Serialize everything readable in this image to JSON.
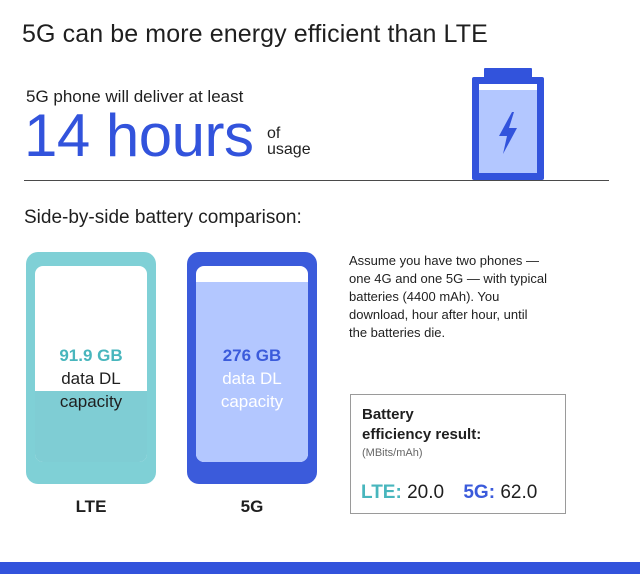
{
  "header": {
    "title": "5G can be more energy efficient than LTE",
    "subtitle": "5G phone will deliver at least",
    "hours": "14 hours",
    "of": "of",
    "usage": "usage"
  },
  "comparison": {
    "section_title": "Side-by-side battery comparison:",
    "lte": {
      "value": "91.9 GB",
      "line1": "data DL",
      "line2": "capacity",
      "label": "LTE",
      "fill_fraction": 0.36
    },
    "g5": {
      "value": "276 GB",
      "line1": "data DL",
      "line2": "capacity",
      "label": "5G",
      "fill_fraction": 0.92
    }
  },
  "assumption": {
    "text": "Assume you have two phones — one 4G and one 5G — with typical batteries (4400 mAh). You download, hour after hour, until the batteries die."
  },
  "result": {
    "title_line1": "Battery",
    "title_line2": "efficiency result:",
    "unit": "(MBits/mAh)",
    "lte_key": "LTE:",
    "lte_value": "20.0",
    "g5_key": "5G:",
    "g5_value": "62.0"
  },
  "colors": {
    "brand_blue": "#3253dc",
    "lte_teal": "#7fd0d6",
    "g5_blue": "#3b5bdb",
    "g5_light": "#b3c7ff"
  },
  "icons": {
    "battery": "battery-charging-icon"
  }
}
